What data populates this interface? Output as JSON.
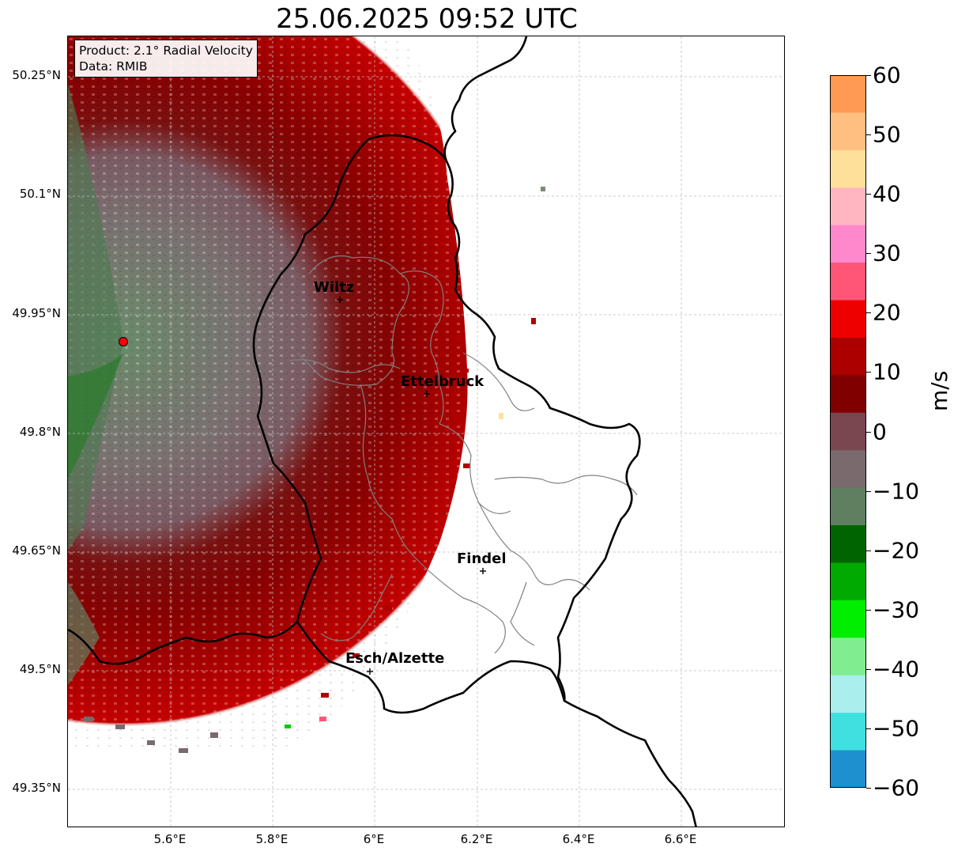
{
  "title": "25.06.2025 09:52 UTC",
  "info": {
    "product": "Product: 2.1° Radial Velocity",
    "data": "Data: RMIB"
  },
  "latitude_labels": [
    "50.25°N",
    "50.1°N",
    "49.95°N",
    "49.8°N",
    "49.65°N",
    "49.5°N",
    "49.35°N"
  ],
  "longitude_labels": [
    "5.6°E",
    "5.8°E",
    "6°E",
    "6.2°E",
    "6.4°E",
    "6.6°E"
  ],
  "cities": [
    {
      "name": "Wiltz"
    },
    {
      "name": "Ettelbruck"
    },
    {
      "name": "Findel"
    },
    {
      "name": "Esch/Alzette"
    }
  ],
  "colorbar": {
    "label": "m/s",
    "ticks": [
      "60",
      "50",
      "40",
      "30",
      "20",
      "10",
      "0",
      "−10",
      "−20",
      "−30",
      "−40",
      "−50",
      "−60"
    ],
    "colors_top_to_bottom": [
      "#ff9a55",
      "#ffbf80",
      "#ffe09a",
      "#ffb6c1",
      "#ff88cc",
      "#ff5577",
      "#ee0000",
      "#aa0000",
      "#800000",
      "#7a4650",
      "#7a6a6e",
      "#5e8060",
      "#006400",
      "#00aa00",
      "#00ee00",
      "#80ee90",
      "#aaeeee",
      "#40e0e0",
      "#1e90d0"
    ]
  },
  "radar_marker": {
    "color": "#ff0000"
  }
}
